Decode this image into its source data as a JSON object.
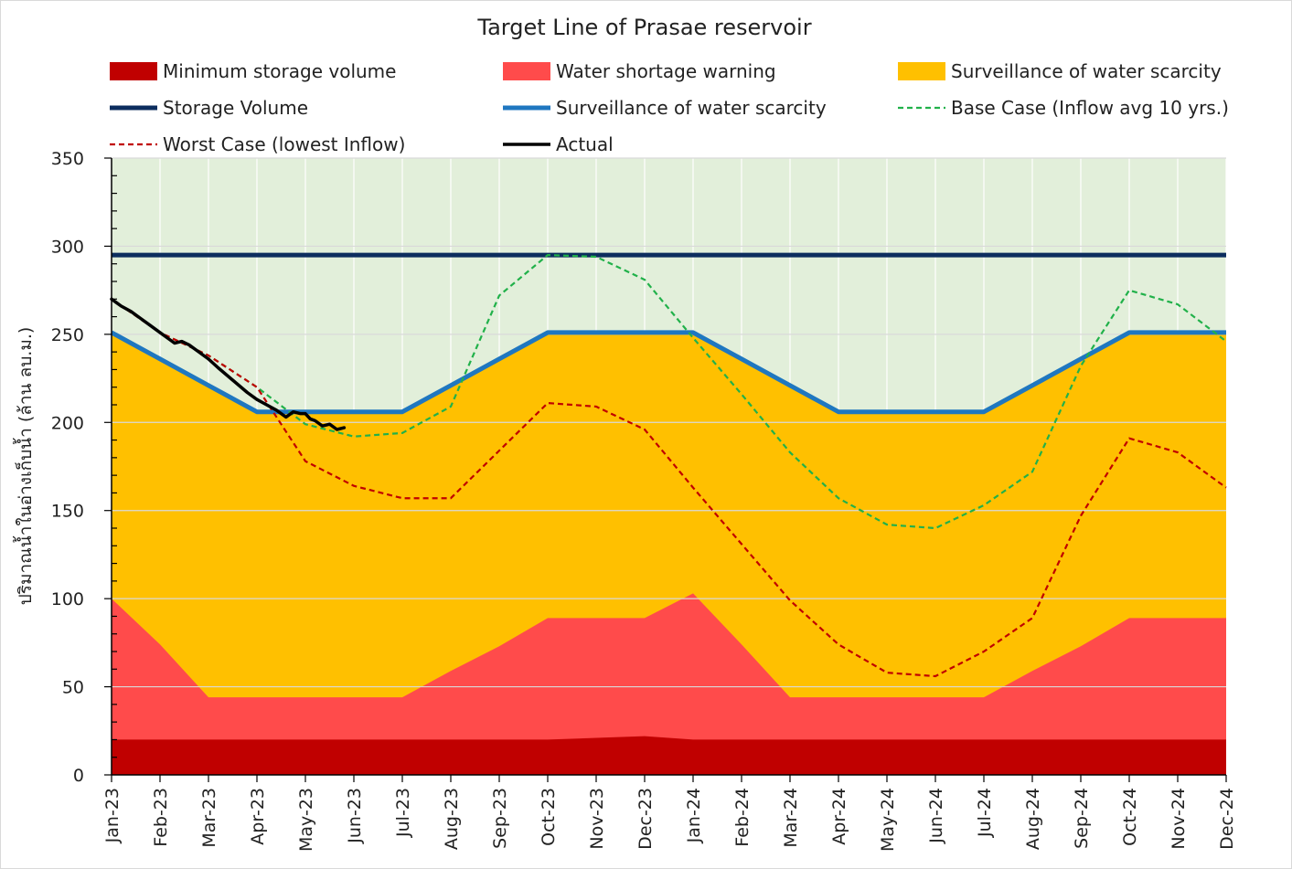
{
  "chart_data": {
    "type": "area",
    "title": "Target Line of Prasae reservoir",
    "ylabel": "ปริมาณน้ำในอ่างเก็บน้ำ (ล้าน ลบ.ม.)",
    "xlabel": "",
    "ylim": [
      0,
      350
    ],
    "yticks": [
      0,
      50,
      100,
      150,
      200,
      250,
      300,
      350
    ],
    "categories": [
      "Jan-23",
      "Feb-23",
      "Mar-23",
      "Apr-23",
      "May-23",
      "Jun-23",
      "Jul-23",
      "Aug-23",
      "Sep-23",
      "Oct-23",
      "Nov-23",
      "Dec-23",
      "Jan-24",
      "Feb-24",
      "Mar-24",
      "Apr-24",
      "May-24",
      "Jun-24",
      "Jul-24",
      "Aug-24",
      "Sep-24",
      "Oct-24",
      "Nov-24",
      "Dec-24"
    ],
    "grid": "horizontal",
    "legend_position": "top",
    "colors": {
      "plot_background": "#e2efda",
      "minimum": "#c00000",
      "warning": "#ff4b4b",
      "surveillance_area": "#ffc000",
      "storage": "#0c2d5e",
      "surveillance_line": "#1f77c0",
      "base_case": "#21b14a",
      "worst_case": "#c00000",
      "actual": "#000000"
    },
    "series": [
      {
        "name": "Minimum storage volume",
        "kind": "area",
        "values": [
          20,
          20,
          20,
          20,
          20,
          20,
          20,
          20,
          20,
          20,
          21,
          22,
          20,
          20,
          20,
          20,
          20,
          20,
          20,
          20,
          20,
          20,
          20,
          20
        ]
      },
      {
        "name": "Water shortage warning",
        "kind": "area",
        "values": [
          100,
          74,
          44,
          44,
          44,
          44,
          44,
          59,
          73,
          89,
          89,
          89,
          103,
          74,
          44,
          44,
          44,
          44,
          44,
          59,
          73,
          89,
          89,
          89
        ]
      },
      {
        "name": "Surveillance of water scarcity",
        "kind": "area",
        "values": [
          251,
          236,
          221,
          206,
          206,
          206,
          206,
          221,
          236,
          251,
          251,
          251,
          251,
          236,
          221,
          206,
          206,
          206,
          206,
          221,
          236,
          251,
          251,
          251
        ]
      },
      {
        "name": "Storage Volume",
        "kind": "line",
        "values": [
          295,
          295,
          295,
          295,
          295,
          295,
          295,
          295,
          295,
          295,
          295,
          295,
          295,
          295,
          295,
          295,
          295,
          295,
          295,
          295,
          295,
          295,
          295,
          295
        ]
      },
      {
        "name": "Surveillance of water scarcity",
        "kind": "line",
        "values": [
          251,
          236,
          221,
          206,
          206,
          206,
          206,
          221,
          236,
          251,
          251,
          251,
          251,
          236,
          221,
          206,
          206,
          206,
          206,
          221,
          236,
          251,
          251,
          251
        ]
      },
      {
        "name": "Base Case (Inflow avg 10 yrs.)",
        "kind": "dashed",
        "values": [
          270,
          251,
          238,
          220,
          199,
          192,
          194,
          209,
          272,
          295,
          294,
          281,
          248,
          216,
          183,
          157,
          142,
          140,
          153,
          172,
          232,
          275,
          267,
          246
        ]
      },
      {
        "name": "Worst Case (lowest Inflow)",
        "kind": "dashed",
        "values": [
          270,
          251,
          238,
          220,
          178,
          164,
          157,
          157,
          184,
          211,
          209,
          196,
          163,
          131,
          99,
          74,
          58,
          56,
          70,
          89,
          147,
          191,
          183,
          163
        ]
      },
      {
        "name": "Actual",
        "kind": "actual",
        "x": [
          0,
          0.2,
          0.4,
          0.6,
          0.8,
          1.0,
          1.2,
          1.3,
          1.45,
          1.6,
          1.8,
          2.0,
          2.2,
          2.5,
          2.8,
          3.0,
          3.2,
          3.4,
          3.6,
          3.75,
          3.9,
          4.0,
          4.1,
          4.2,
          4.35,
          4.5,
          4.65,
          4.8
        ],
        "values": [
          270,
          266,
          263,
          259,
          255,
          251,
          247,
          245,
          246,
          244,
          240,
          236,
          231,
          224,
          217,
          213,
          210,
          207,
          203,
          206,
          205,
          205,
          202,
          201,
          198,
          199,
          196,
          197
        ]
      }
    ]
  }
}
